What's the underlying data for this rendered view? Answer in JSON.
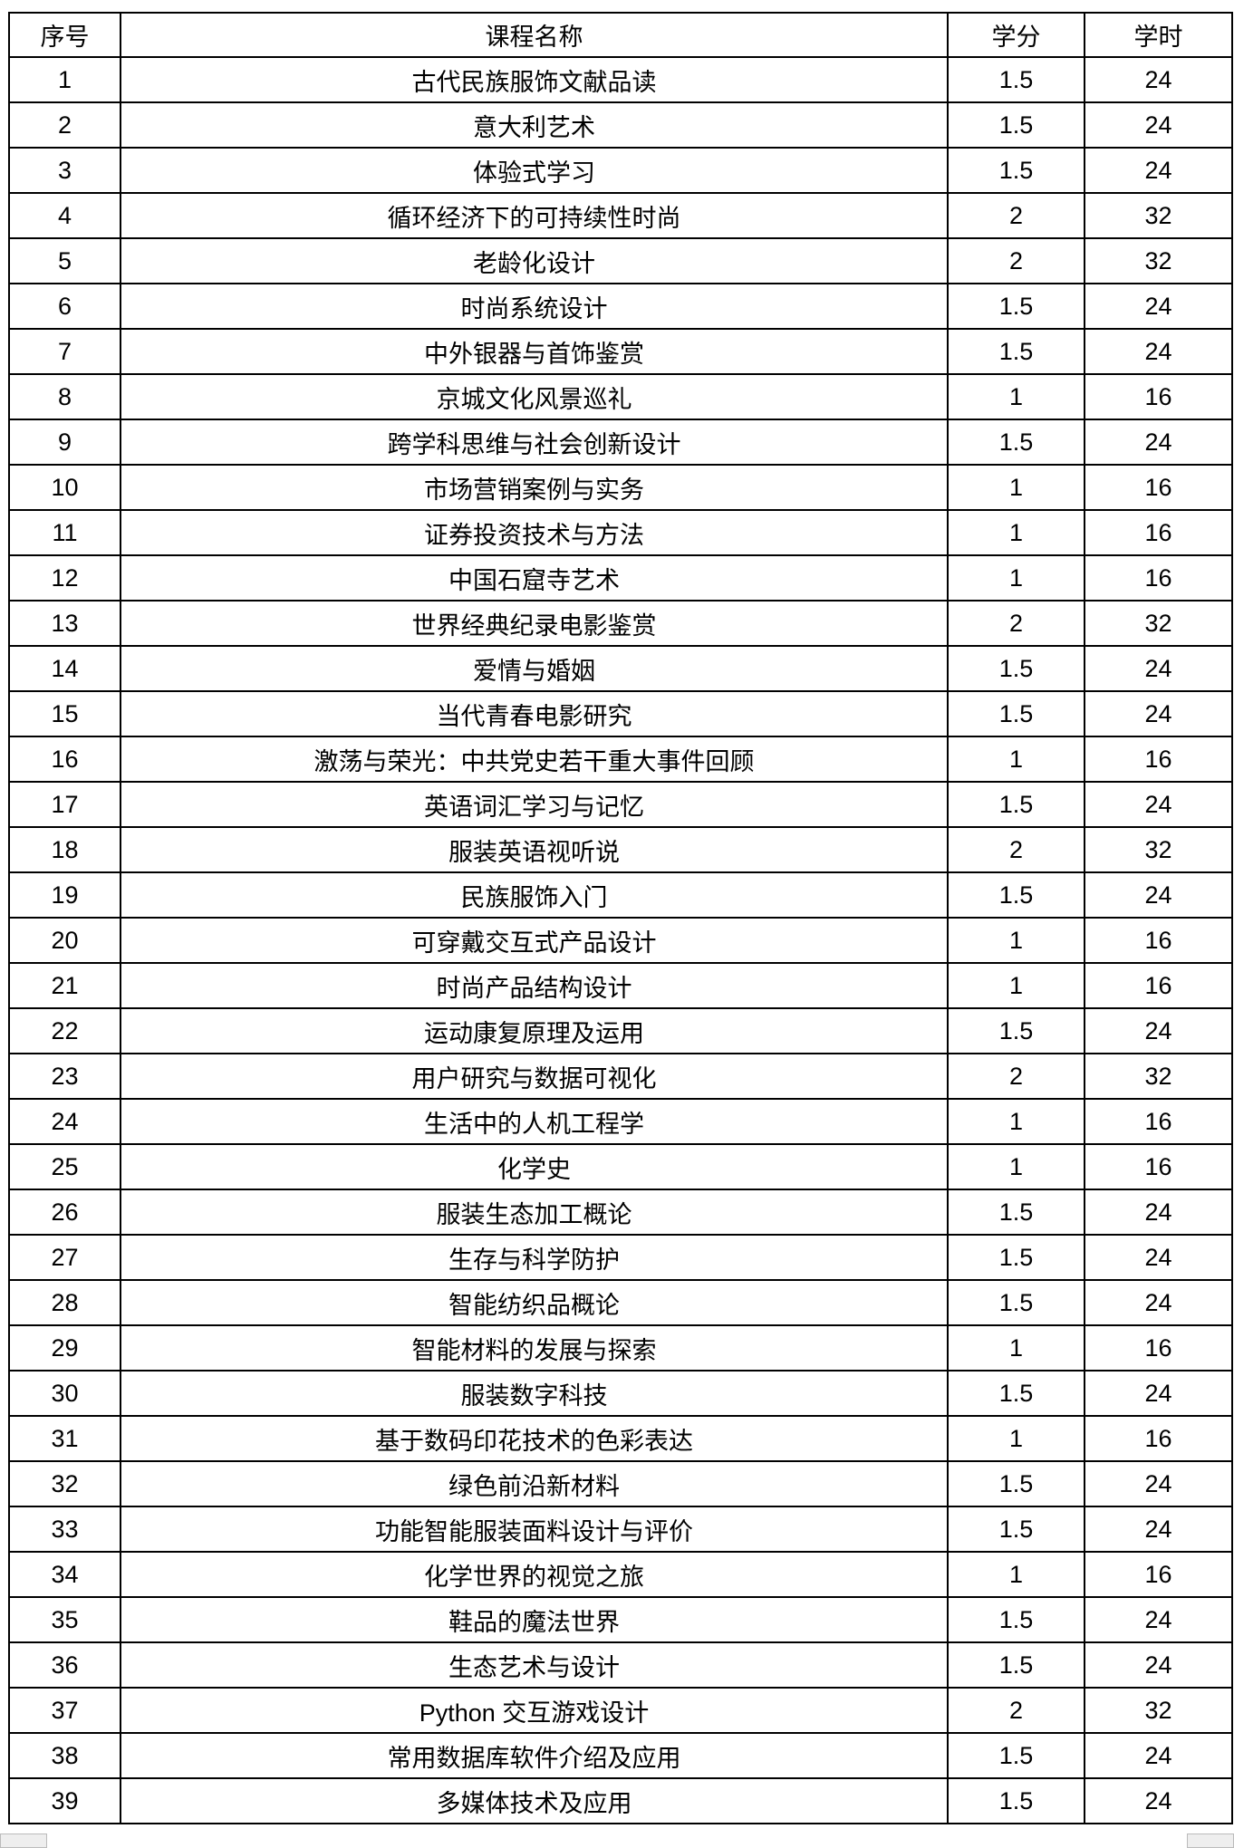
{
  "table": {
    "headers": [
      "序号",
      "课程名称",
      "学分",
      "学时"
    ],
    "rows": [
      [
        "1",
        "古代民族服饰文献品读",
        "1.5",
        "24"
      ],
      [
        "2",
        "意大利艺术",
        "1.5",
        "24"
      ],
      [
        "3",
        "体验式学习",
        "1.5",
        "24"
      ],
      [
        "4",
        "循环经济下的可持续性时尚",
        "2",
        "32"
      ],
      [
        "5",
        "老龄化设计",
        "2",
        "32"
      ],
      [
        "6",
        "时尚系统设计",
        "1.5",
        "24"
      ],
      [
        "7",
        "中外银器与首饰鉴赏",
        "1.5",
        "24"
      ],
      [
        "8",
        "京城文化风景巡礼",
        "1",
        "16"
      ],
      [
        "9",
        "跨学科思维与社会创新设计",
        "1.5",
        "24"
      ],
      [
        "10",
        "市场营销案例与实务",
        "1",
        "16"
      ],
      [
        "11",
        "证券投资技术与方法",
        "1",
        "16"
      ],
      [
        "12",
        "中国石窟寺艺术",
        "1",
        "16"
      ],
      [
        "13",
        "世界经典纪录电影鉴赏",
        "2",
        "32"
      ],
      [
        "14",
        "爱情与婚姻",
        "1.5",
        "24"
      ],
      [
        "15",
        "当代青春电影研究",
        "1.5",
        "24"
      ],
      [
        "16",
        "激荡与荣光：中共党史若干重大事件回顾",
        "1",
        "16"
      ],
      [
        "17",
        "英语词汇学习与记忆",
        "1.5",
        "24"
      ],
      [
        "18",
        "服装英语视听说",
        "2",
        "32"
      ],
      [
        "19",
        "民族服饰入门",
        "1.5",
        "24"
      ],
      [
        "20",
        "可穿戴交互式产品设计",
        "1",
        "16"
      ],
      [
        "21",
        "时尚产品结构设计",
        "1",
        "16"
      ],
      [
        "22",
        "运动康复原理及运用",
        "1.5",
        "24"
      ],
      [
        "23",
        "用户研究与数据可视化",
        "2",
        "32"
      ],
      [
        "24",
        "生活中的人机工程学",
        "1",
        "16"
      ],
      [
        "25",
        "化学史",
        "1",
        "16"
      ],
      [
        "26",
        "服装生态加工概论",
        "1.5",
        "24"
      ],
      [
        "27",
        "生存与科学防护",
        "1.5",
        "24"
      ],
      [
        "28",
        "智能纺织品概论",
        "1.5",
        "24"
      ],
      [
        "29",
        "智能材料的发展与探索",
        "1",
        "16"
      ],
      [
        "30",
        "服装数字科技",
        "1.5",
        "24"
      ],
      [
        "31",
        "基于数码印花技术的色彩表达",
        "1",
        "16"
      ],
      [
        "32",
        "绿色前沿新材料",
        "1.5",
        "24"
      ],
      [
        "33",
        "功能智能服装面料设计与评价",
        "1.5",
        "24"
      ],
      [
        "34",
        "化学世界的视觉之旅",
        "1",
        "16"
      ],
      [
        "35",
        "鞋品的魔法世界",
        "1.5",
        "24"
      ],
      [
        "36",
        "生态艺术与设计",
        "1.5",
        "24"
      ],
      [
        "37",
        "Python 交互游戏设计",
        "2",
        "32"
      ],
      [
        "38",
        "常用数据库软件介绍及应用",
        "1.5",
        "24"
      ],
      [
        "39",
        "多媒体技术及应用",
        "1.5",
        "24"
      ]
    ]
  }
}
